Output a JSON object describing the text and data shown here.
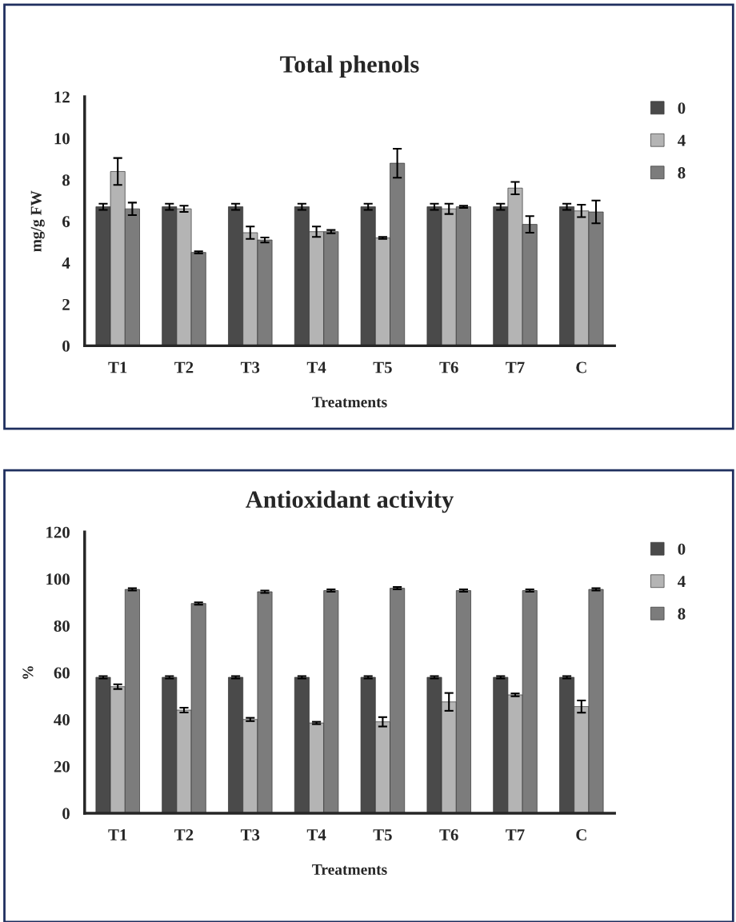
{
  "chart_data": [
    {
      "type": "bar",
      "title": "Total phenols",
      "xlabel": "Treatments",
      "ylabel": "mg/g FW",
      "categories": [
        "T1",
        "T2",
        "T3",
        "T4",
        "T5",
        "T6",
        "T7",
        "C"
      ],
      "series": [
        {
          "name": "0",
          "color": "#4a4a4a",
          "values": [
            6.7,
            6.7,
            6.7,
            6.7,
            6.7,
            6.7,
            6.7,
            6.7
          ],
          "errors": [
            0.15,
            0.15,
            0.15,
            0.15,
            0.15,
            0.15,
            0.15,
            0.15
          ]
        },
        {
          "name": "4",
          "color": "#b4b4b4",
          "values": [
            8.4,
            6.6,
            5.45,
            5.5,
            5.2,
            6.6,
            7.6,
            6.5
          ],
          "errors": [
            0.65,
            0.15,
            0.3,
            0.25,
            0.05,
            0.25,
            0.3,
            0.3
          ]
        },
        {
          "name": "8",
          "color": "#7c7c7c",
          "values": [
            6.6,
            4.5,
            5.1,
            5.5,
            8.8,
            6.7,
            5.85,
            6.45
          ],
          "errors": [
            0.3,
            0.05,
            0.12,
            0.08,
            0.7,
            0.05,
            0.4,
            0.55
          ]
        }
      ],
      "ylim": [
        0,
        12
      ],
      "yticks": [
        0,
        2,
        4,
        6,
        8,
        10,
        12
      ],
      "grid": false,
      "legend": "right"
    },
    {
      "type": "bar",
      "title": "Antioxidant activity",
      "xlabel": "Treatments",
      "ylabel": "%",
      "categories": [
        "T1",
        "T2",
        "T3",
        "T4",
        "T5",
        "T6",
        "T7",
        "C"
      ],
      "series": [
        {
          "name": "0",
          "color": "#4a4a4a",
          "values": [
            58,
            58,
            58,
            58,
            58,
            58,
            58,
            58
          ],
          "errors": [
            0.5,
            0.5,
            0.5,
            0.5,
            0.5,
            0.5,
            0.5,
            0.5
          ]
        },
        {
          "name": "4",
          "color": "#b4b4b4",
          "values": [
            54,
            44,
            40,
            38.5,
            39,
            47.5,
            50.5,
            45.5
          ],
          "errors": [
            1,
            1,
            0.7,
            0.5,
            2,
            3.8,
            0.6,
            2.6
          ]
        },
        {
          "name": "8",
          "color": "#7c7c7c",
          "values": [
            95.5,
            89.5,
            94.5,
            95,
            96,
            95,
            95,
            95.5
          ],
          "errors": [
            0.5,
            0.5,
            0.5,
            0.5,
            0.5,
            0.5,
            0.5,
            0.5
          ]
        }
      ],
      "ylim": [
        0,
        120
      ],
      "yticks": [
        0,
        20,
        40,
        60,
        80,
        100,
        120
      ],
      "grid": false,
      "legend": "right"
    }
  ]
}
